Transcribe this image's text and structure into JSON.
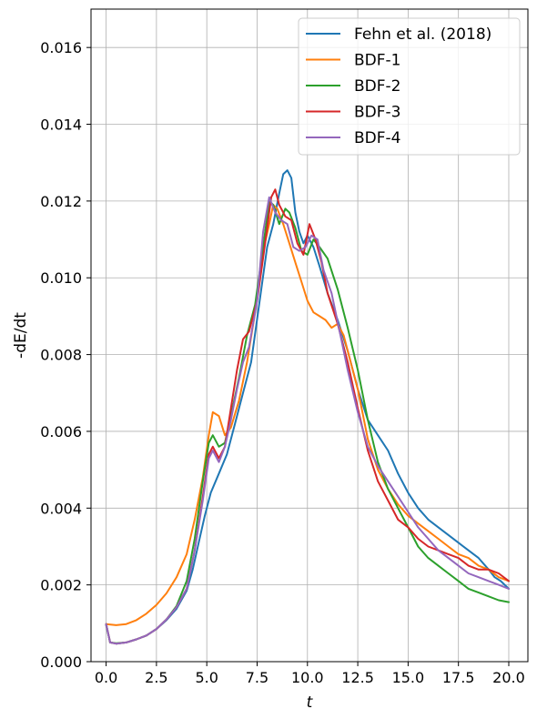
{
  "chart_data": {
    "type": "line",
    "xlabel": "t",
    "ylabel": "-dE/dt",
    "xlim": [
      -0.75,
      20.95
    ],
    "ylim": [
      0,
      0.017
    ],
    "xticks": [
      0.0,
      2.5,
      5.0,
      7.5,
      10.0,
      12.5,
      15.0,
      17.5,
      20.0
    ],
    "xtick_labels": [
      "0.0",
      "2.5",
      "5.0",
      "7.5",
      "10.0",
      "12.5",
      "15.0",
      "17.5",
      "20.0"
    ],
    "yticks": [
      0.0,
      0.002,
      0.004,
      0.006,
      0.008,
      0.01,
      0.012,
      0.014,
      0.016
    ],
    "ytick_labels": [
      "0.000",
      "0.002",
      "0.004",
      "0.006",
      "0.008",
      "0.010",
      "0.012",
      "0.014",
      "0.016"
    ],
    "grid": true,
    "legend": "top-right",
    "series": [
      {
        "name": "Fehn et al. (2018)",
        "color": "#1f77b4",
        "x": [
          0.0,
          0.2,
          0.5,
          1.0,
          1.5,
          2.0,
          2.5,
          3.0,
          3.5,
          4.0,
          4.3,
          4.6,
          4.9,
          5.2,
          5.6,
          6.0,
          6.4,
          6.8,
          7.2,
          7.6,
          8.0,
          8.3,
          8.6,
          8.8,
          9.0,
          9.2,
          9.4,
          9.6,
          9.8,
          10.0,
          10.3,
          10.6,
          11.0,
          11.5,
          12.0,
          12.5,
          13.0,
          13.5,
          14.0,
          14.5,
          15.0,
          15.5,
          16.0,
          16.5,
          17.0,
          17.5,
          18.0,
          18.5,
          19.0,
          19.3,
          19.6,
          20.0
        ],
        "y": [
          0.00095,
          0.0005,
          0.00047,
          0.0005,
          0.00058,
          0.00068,
          0.00085,
          0.00108,
          0.00138,
          0.00185,
          0.0024,
          0.0031,
          0.0038,
          0.0044,
          0.0049,
          0.0054,
          0.0062,
          0.007,
          0.0078,
          0.0093,
          0.0108,
          0.0114,
          0.0122,
          0.0127,
          0.0128,
          0.0126,
          0.0117,
          0.0112,
          0.0109,
          0.0111,
          0.0108,
          0.0103,
          0.0096,
          0.0089,
          0.0081,
          0.0071,
          0.0063,
          0.0059,
          0.0055,
          0.0049,
          0.0044,
          0.004,
          0.0037,
          0.0035,
          0.0033,
          0.0031,
          0.0029,
          0.0027,
          0.0024,
          0.0022,
          0.0021,
          0.0019
        ]
      },
      {
        "name": "BDF-1",
        "color": "#ff7f0e",
        "x": [
          0.0,
          0.5,
          1.0,
          1.5,
          2.0,
          2.5,
          3.0,
          3.5,
          4.0,
          4.4,
          4.8,
          5.1,
          5.3,
          5.6,
          5.9,
          6.2,
          6.6,
          7.0,
          7.4,
          7.8,
          8.1,
          8.3,
          8.5,
          8.8,
          9.1,
          9.4,
          9.7,
          10.0,
          10.3,
          10.6,
          10.9,
          11.2,
          11.5,
          11.8,
          12.1,
          12.5,
          13.0,
          13.5,
          14.0,
          14.5,
          15.0,
          15.5,
          16.0,
          16.5,
          17.0,
          17.5,
          18.0,
          18.5,
          19.0,
          19.5,
          20.0
        ],
        "y": [
          0.00098,
          0.00095,
          0.00098,
          0.00108,
          0.00125,
          0.00148,
          0.00178,
          0.0022,
          0.0028,
          0.0037,
          0.0048,
          0.0059,
          0.0065,
          0.0064,
          0.0059,
          0.0061,
          0.0068,
          0.0078,
          0.0091,
          0.0107,
          0.0114,
          0.0119,
          0.0118,
          0.0114,
          0.0109,
          0.0104,
          0.0099,
          0.0094,
          0.0091,
          0.009,
          0.0089,
          0.0087,
          0.0088,
          0.0085,
          0.0079,
          0.0071,
          0.0058,
          0.005,
          0.0045,
          0.0041,
          0.0038,
          0.0036,
          0.0034,
          0.0032,
          0.003,
          0.0028,
          0.0027,
          0.0025,
          0.0024,
          0.0022,
          0.0021
        ]
      },
      {
        "name": "BDF-2",
        "color": "#2ca02c",
        "x": [
          0.0,
          0.2,
          0.5,
          1.0,
          1.5,
          2.0,
          2.5,
          3.0,
          3.5,
          4.0,
          4.4,
          4.8,
          5.1,
          5.3,
          5.6,
          5.9,
          6.2,
          6.6,
          7.0,
          7.4,
          7.8,
          8.1,
          8.3,
          8.6,
          8.9,
          9.1,
          9.4,
          9.7,
          10.0,
          10.3,
          10.6,
          11.0,
          11.5,
          12.0,
          12.5,
          13.0,
          13.5,
          14.0,
          14.5,
          15.0,
          15.5,
          16.0,
          16.5,
          17.0,
          17.5,
          18.0,
          18.5,
          19.0,
          19.5,
          20.0
        ],
        "y": [
          0.00098,
          0.0005,
          0.00048,
          0.0005,
          0.00058,
          0.00068,
          0.00085,
          0.0011,
          0.00145,
          0.0021,
          0.0032,
          0.0047,
          0.0057,
          0.0059,
          0.0056,
          0.0057,
          0.0064,
          0.0074,
          0.0085,
          0.0093,
          0.0108,
          0.012,
          0.0119,
          0.0114,
          0.0118,
          0.0117,
          0.0113,
          0.0107,
          0.0106,
          0.011,
          0.0108,
          0.0105,
          0.0097,
          0.0087,
          0.0076,
          0.0063,
          0.0052,
          0.0045,
          0.004,
          0.0035,
          0.003,
          0.0027,
          0.0025,
          0.0023,
          0.0021,
          0.0019,
          0.0018,
          0.0017,
          0.0016,
          0.00155
        ]
      },
      {
        "name": "BDF-3",
        "color": "#d62728",
        "x": [
          0.0,
          0.2,
          0.5,
          1.0,
          1.5,
          2.0,
          2.5,
          3.0,
          3.5,
          4.0,
          4.4,
          4.8,
          5.1,
          5.3,
          5.6,
          5.9,
          6.2,
          6.5,
          6.8,
          7.1,
          7.5,
          7.9,
          8.2,
          8.4,
          8.6,
          8.9,
          9.2,
          9.5,
          9.8,
          10.1,
          10.4,
          10.7,
          11.0,
          11.5,
          12.0,
          12.5,
          13.0,
          13.5,
          14.0,
          14.5,
          15.0,
          15.5,
          16.0,
          16.5,
          17.0,
          17.5,
          18.0,
          18.5,
          19.0,
          19.5,
          20.0
        ],
        "y": [
          0.00098,
          0.0005,
          0.00047,
          0.0005,
          0.00058,
          0.00068,
          0.00085,
          0.0011,
          0.00142,
          0.0019,
          0.0029,
          0.0043,
          0.0054,
          0.0056,
          0.0053,
          0.0056,
          0.0066,
          0.0076,
          0.0084,
          0.0086,
          0.0094,
          0.0109,
          0.0121,
          0.0123,
          0.0119,
          0.0116,
          0.0115,
          0.0109,
          0.0106,
          0.0114,
          0.011,
          0.0104,
          0.0096,
          0.0088,
          0.0078,
          0.0066,
          0.0055,
          0.0047,
          0.0042,
          0.0037,
          0.0035,
          0.0032,
          0.003,
          0.0029,
          0.0028,
          0.0027,
          0.0025,
          0.0024,
          0.0024,
          0.0023,
          0.0021
        ]
      },
      {
        "name": "BDF-4",
        "color": "#9467bd",
        "x": [
          0.0,
          0.2,
          0.5,
          1.0,
          1.5,
          2.0,
          2.5,
          3.0,
          3.5,
          4.0,
          4.4,
          4.8,
          5.1,
          5.3,
          5.6,
          5.9,
          6.2,
          6.5,
          6.8,
          7.1,
          7.5,
          7.8,
          8.1,
          8.4,
          8.7,
          9.0,
          9.3,
          9.6,
          9.9,
          10.2,
          10.5,
          10.8,
          11.2,
          11.6,
          12.0,
          12.5,
          13.0,
          13.5,
          14.0,
          14.5,
          15.0,
          15.5,
          16.0,
          16.5,
          17.0,
          17.5,
          18.0,
          18.5,
          19.0,
          19.5,
          20.0
        ],
        "y": [
          0.00098,
          0.0005,
          0.00047,
          0.0005,
          0.00058,
          0.00068,
          0.00085,
          0.0011,
          0.00142,
          0.0019,
          0.0029,
          0.0042,
          0.0053,
          0.0055,
          0.0052,
          0.0056,
          0.0063,
          0.0071,
          0.0078,
          0.0082,
          0.0094,
          0.0112,
          0.0121,
          0.0117,
          0.0115,
          0.0114,
          0.0108,
          0.0107,
          0.0108,
          0.0111,
          0.011,
          0.0102,
          0.0096,
          0.0086,
          0.0076,
          0.0065,
          0.0056,
          0.0051,
          0.0047,
          0.0043,
          0.0039,
          0.0035,
          0.0032,
          0.0029,
          0.0027,
          0.0025,
          0.0023,
          0.0022,
          0.0021,
          0.002,
          0.0019
        ]
      }
    ]
  }
}
